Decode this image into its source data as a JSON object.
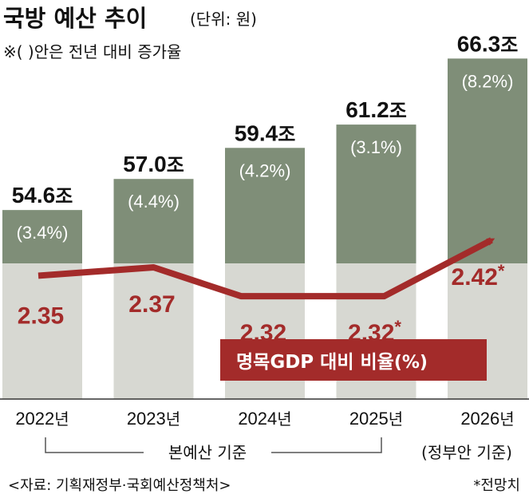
{
  "header": {
    "title": "국방 예산 추이",
    "unit": "(단위: 원)",
    "note": "※(  )안은 전년 대비 증가율"
  },
  "chart_data": {
    "type": "bar",
    "categories": [
      "2022",
      "2023",
      "2024",
      "2025",
      "2026"
    ],
    "category_suffix": "년",
    "values": [
      54.6,
      57.0,
      59.4,
      61.2,
      66.3
    ],
    "value_labels": [
      "54.6",
      "57.0",
      "59.4",
      "61.2",
      "66.3"
    ],
    "value_unit": "조",
    "growth_labels": [
      "(3.4%)",
      "(4.4%)",
      "(4.2%)",
      "(3.1%)",
      "(8.2%)"
    ],
    "ylim": [
      40,
      67
    ],
    "gdp_ratio": {
      "label": "명목GDP 대비 비율",
      "label_unit": "(%)",
      "values": [
        2.35,
        2.37,
        2.32,
        2.32,
        2.42
      ],
      "value_labels": [
        "2.35",
        "2.37",
        "2.32",
        "2.32",
        "2.42"
      ],
      "ylim": [
        2.28,
        2.46
      ],
      "starred": [
        false,
        false,
        false,
        true,
        true
      ],
      "star_symbol": "*"
    },
    "colors": {
      "bar": "#7f8e78",
      "bar_light": "#d7d8d2",
      "line": "#a32b2a"
    }
  },
  "annotations": {
    "bracket_label": "본예산 기준",
    "government_plan_label": "(정부안 기준)"
  },
  "footer": {
    "source": "<자료: 기획재정부·국회예산정책처>",
    "forecast": "*전망치"
  }
}
